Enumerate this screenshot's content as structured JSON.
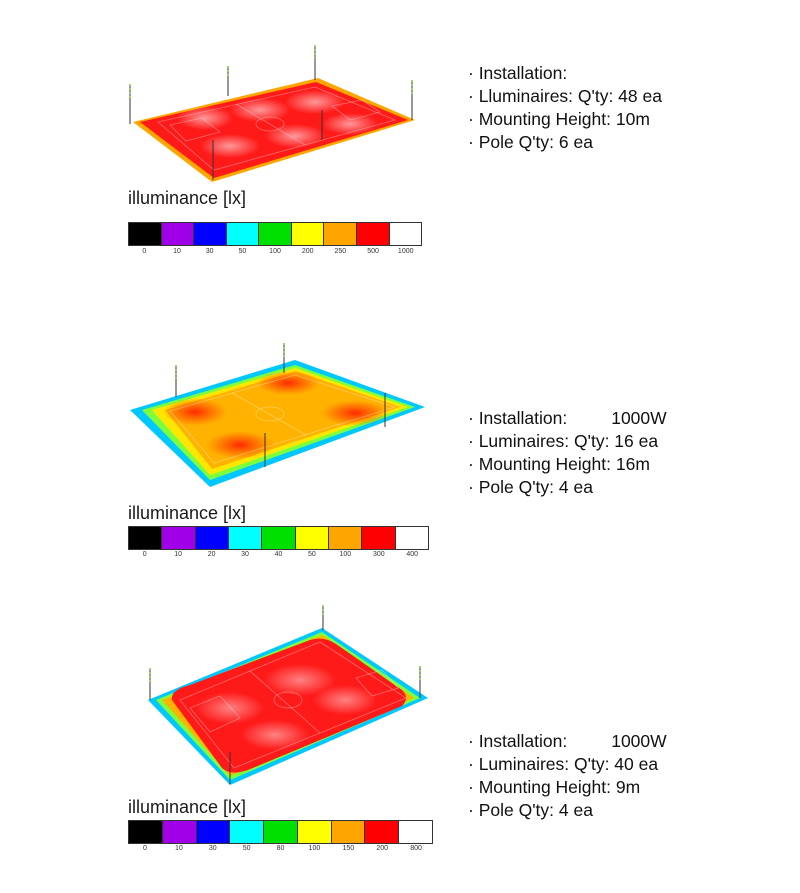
{
  "panels": [
    {
      "legend_title": "illuminance [lx]",
      "scale_colors": [
        "#000000",
        "#a000e8",
        "#0000ff",
        "#00ffff",
        "#00e000",
        "#ffff00",
        "#ffa500",
        "#ff0000",
        "#ffffff"
      ],
      "scale_labels": [
        "0",
        "10",
        "30",
        "50",
        "100",
        "200",
        "250",
        "500",
        "1000"
      ],
      "info": {
        "installation_label": "· Installation:",
        "installation_value": "",
        "luminaires": "· Lluminaires: Q'ty: 48 ea",
        "mounting": "· Mounting Height: 10m",
        "poles": "· Pole Q'ty: 6 ea"
      }
    },
    {
      "legend_title": "illuminance [lx]",
      "scale_colors": [
        "#000000",
        "#a000e8",
        "#0000ff",
        "#00ffff",
        "#00e000",
        "#ffff00",
        "#ffa500",
        "#ff0000",
        "#ffffff"
      ],
      "scale_labels": [
        "0",
        "10",
        "20",
        "30",
        "40",
        "50",
        "100",
        "300",
        "400"
      ],
      "info": {
        "installation_label": "· Installation:",
        "installation_value": "1000W",
        "luminaires": "· Luminaires: Q'ty: 16 ea",
        "mounting": "· Mounting Height: 16m",
        "poles": "· Pole Q'ty: 4 ea"
      }
    },
    {
      "legend_title": "illuminance [lx]",
      "scale_colors": [
        "#000000",
        "#a000e8",
        "#0000ff",
        "#00ffff",
        "#00e000",
        "#ffff00",
        "#ffa500",
        "#ff0000",
        "#ffffff"
      ],
      "scale_labels": [
        "0",
        "10",
        "30",
        "50",
        "80",
        "100",
        "150",
        "200",
        "800"
      ],
      "info": {
        "installation_label": "· Installation:",
        "installation_value": "1000W",
        "luminaires": "· Luminaires: Q'ty: 40 ea",
        "mounting": "· Mounting Height: 9m",
        "poles": "· Pole Q'ty: 4 ea"
      }
    }
  ]
}
